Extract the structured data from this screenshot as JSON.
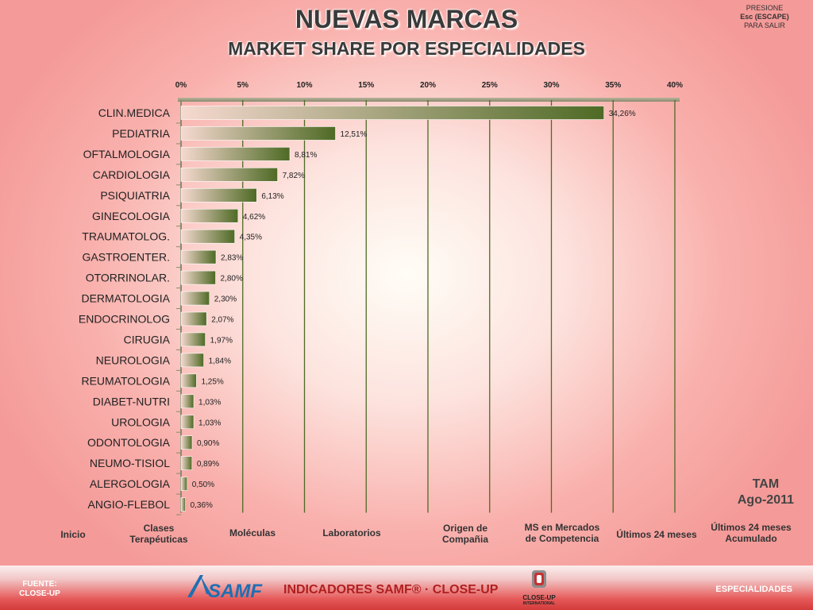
{
  "header": {
    "title": "NUEVAS MARCAS",
    "subtitle": "MARKET SHARE POR  ESPECIALIDADES",
    "esc_line1": "PRESIONE",
    "esc_line2": "Esc (ESCAPE)",
    "esc_line3": "PARA SALIR"
  },
  "chart_data": {
    "type": "bar",
    "orientation": "horizontal",
    "categories": [
      "CLIN.MEDICA",
      "PEDIATRIA",
      "OFTALMOLOGIA",
      "CARDIOLOGIA",
      "PSIQUIATRIA",
      "GINECOLOGIA",
      "TRAUMATOLOG.",
      "GASTROENTER.",
      "OTORRINOLAR.",
      "DERMATOLOGIA",
      "ENDOCRINOLOG",
      "CIRUGIA",
      "NEUROLOGIA",
      "REUMATOLOGIA",
      "DIABET-NUTRI",
      "UROLOGIA",
      "ODONTOLOGIA",
      "NEUMO-TISIOL",
      "ALERGOLOGIA",
      "ANGIO-FLEBOL"
    ],
    "values": [
      34.26,
      12.51,
      8.81,
      7.82,
      6.13,
      4.62,
      4.35,
      2.83,
      2.8,
      2.3,
      2.07,
      1.97,
      1.84,
      1.25,
      1.03,
      1.03,
      0.9,
      0.89,
      0.5,
      0.36
    ],
    "data_labels": [
      "34,26%",
      "12,51%",
      "8,81%",
      "7,82%",
      "6,13%",
      "4,62%",
      "4,35%",
      "2,83%",
      "2,80%",
      "2,30%",
      "2,07%",
      "1,97%",
      "1,84%",
      "1,25%",
      "1,03%",
      "1,03%",
      "0,90%",
      "0,89%",
      "0,50%",
      "0,36%"
    ],
    "x_ticks": [
      0,
      5,
      10,
      15,
      20,
      25,
      30,
      35,
      40
    ],
    "x_tick_labels": [
      "0%",
      "5%",
      "10%",
      "15%",
      "20%",
      "25%",
      "30%",
      "35%",
      "40%"
    ],
    "xlim": [
      0,
      40
    ],
    "x_axis_position": "top",
    "grid": true,
    "colors": {
      "bar_start": "#f6d9d0",
      "bar_end": "#4e6a25",
      "grid": "#4e6a25",
      "axis": "#8a8a70"
    }
  },
  "period": {
    "line1": "TAM",
    "line2": "Ago-2011"
  },
  "nav": [
    {
      "line1": "Inicio",
      "line2": ""
    },
    {
      "line1": "Clases",
      "line2": "Terapéuticas"
    },
    {
      "line1": "Moléculas",
      "line2": ""
    },
    {
      "line1": "Laboratorios",
      "line2": ""
    },
    {
      "line1": "Origen de",
      "line2": "Compañia"
    },
    {
      "line1": "MS en Mercados",
      "line2": "de Competencia"
    },
    {
      "line1": "Últimos 24 meses",
      "line2": ""
    },
    {
      "line1": "Últimos 24 meses",
      "line2": "Acumulado"
    }
  ],
  "footer": {
    "fuente_line1": "FUENTE:",
    "fuente_line2": "CLOSE-UP",
    "samf_logo_text": "SAMF",
    "indicadores": "INDICADORES SAMF® · CLOSE-UP",
    "closeup_logo_line1": "CLOSE-UP",
    "closeup_logo_line2": "INTERNATIONAL",
    "especialidades": "ESPECIALIDADES"
  }
}
